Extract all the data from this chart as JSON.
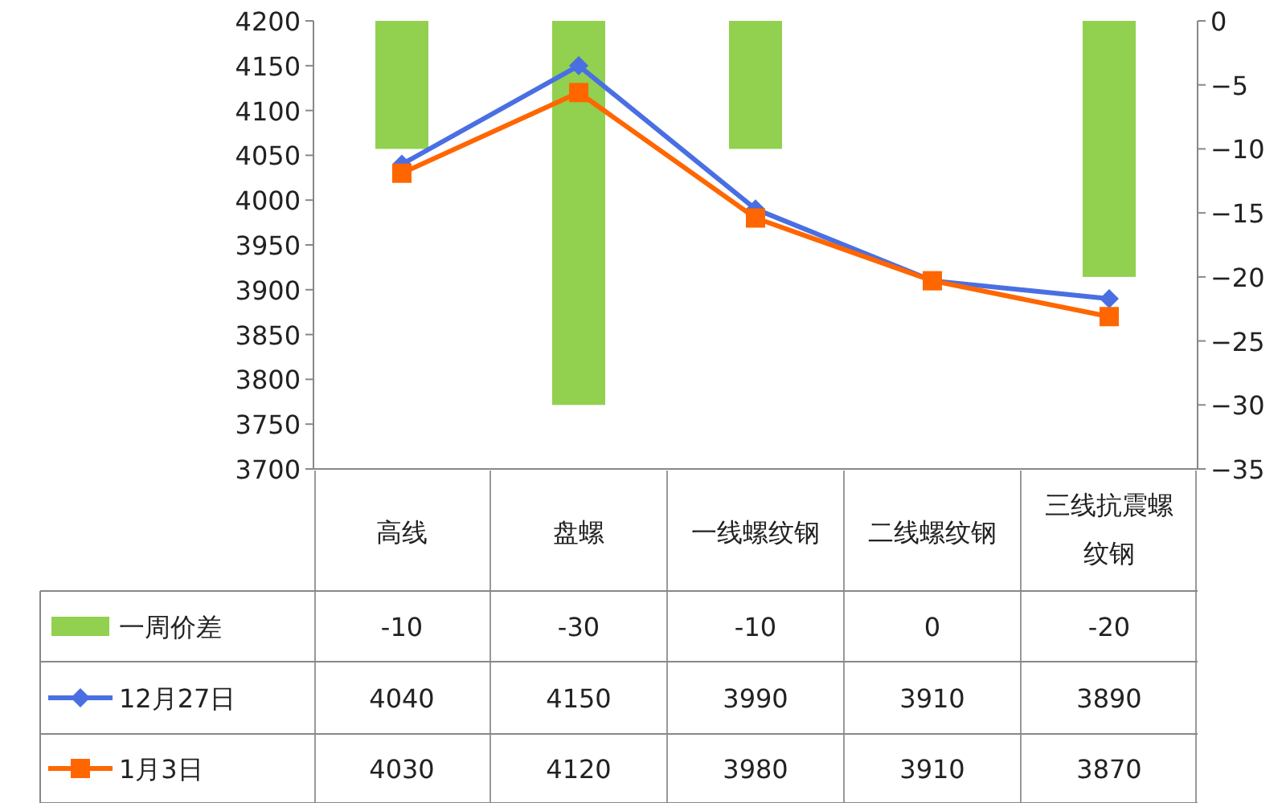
{
  "chart_data": {
    "type": "bar",
    "categories": [
      "高线",
      "盘螺",
      "一线螺纹钢",
      "二线螺纹钢",
      "三线抗震螺纹钢"
    ],
    "series": [
      {
        "name": "一周价差",
        "type": "bar",
        "axis": "y2",
        "color": "#92d050",
        "values": [
          -10,
          -30,
          -10,
          0,
          -20
        ]
      },
      {
        "name": "12月27日",
        "type": "line",
        "marker": "diamond",
        "color": "#4a6fe3",
        "values": [
          4040,
          4150,
          3990,
          3910,
          3890
        ]
      },
      {
        "name": "1月3日",
        "type": "line",
        "marker": "square",
        "color": "#ff6600",
        "values": [
          4030,
          4120,
          3980,
          3910,
          3870
        ]
      }
    ],
    "ylim": [
      3700,
      4200
    ],
    "yticks": [
      3700,
      3750,
      3800,
      3850,
      3900,
      3950,
      4000,
      4050,
      4100,
      4150,
      4200
    ],
    "y2lim": [
      -35,
      0
    ],
    "y2ticks": [
      -35,
      -30,
      -25,
      -20,
      -15,
      -10,
      -5,
      0
    ],
    "grid": false,
    "legend": "bottom",
    "data_labels": true
  }
}
